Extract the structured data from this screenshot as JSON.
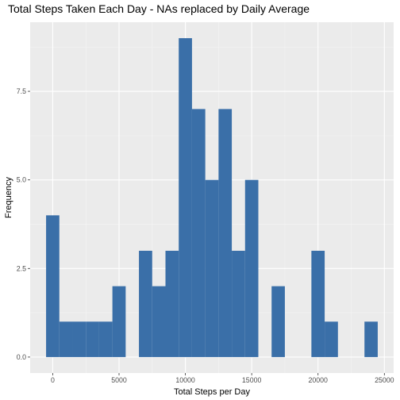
{
  "chart_data": {
    "type": "bar",
    "title": "Total Steps Taken Each Day - NAs replaced by Daily Average",
    "xlabel": "Total Steps per Day",
    "ylabel": "Frequency",
    "bin_width": 1000,
    "bins": [
      {
        "x": 0,
        "count": 4
      },
      {
        "x": 1000,
        "count": 1
      },
      {
        "x": 2000,
        "count": 1
      },
      {
        "x": 3000,
        "count": 1
      },
      {
        "x": 4000,
        "count": 1
      },
      {
        "x": 5000,
        "count": 2
      },
      {
        "x": 6000,
        "count": 0
      },
      {
        "x": 7000,
        "count": 3
      },
      {
        "x": 8000,
        "count": 2
      },
      {
        "x": 9000,
        "count": 3
      },
      {
        "x": 10000,
        "count": 9
      },
      {
        "x": 11000,
        "count": 7
      },
      {
        "x": 12000,
        "count": 5
      },
      {
        "x": 13000,
        "count": 7
      },
      {
        "x": 14000,
        "count": 3
      },
      {
        "x": 15000,
        "count": 5
      },
      {
        "x": 16000,
        "count": 0
      },
      {
        "x": 17000,
        "count": 2
      },
      {
        "x": 18000,
        "count": 0
      },
      {
        "x": 19000,
        "count": 0
      },
      {
        "x": 20000,
        "count": 3
      },
      {
        "x": 21000,
        "count": 1
      },
      {
        "x": 22000,
        "count": 0
      },
      {
        "x": 23000,
        "count": 0
      },
      {
        "x": 24000,
        "count": 1
      }
    ],
    "xlim": [
      -1700,
      25700
    ],
    "ylim": [
      -0.45,
      9.45
    ],
    "x_ticks": [
      0,
      5000,
      10000,
      15000,
      20000,
      25000
    ],
    "x_tick_labels": [
      "0",
      "5000",
      "10000",
      "15000",
      "20000",
      "25000"
    ],
    "y_ticks": [
      0,
      2.5,
      5,
      7.5
    ],
    "y_tick_labels": [
      "0.0",
      "2.5",
      "5.0",
      "7.5"
    ],
    "grid": true,
    "colors": {
      "bar": "#3a6fa8",
      "panel": "#ebebeb",
      "grid_major": "#ffffff",
      "grid_minor": "#f5f5f5"
    }
  }
}
